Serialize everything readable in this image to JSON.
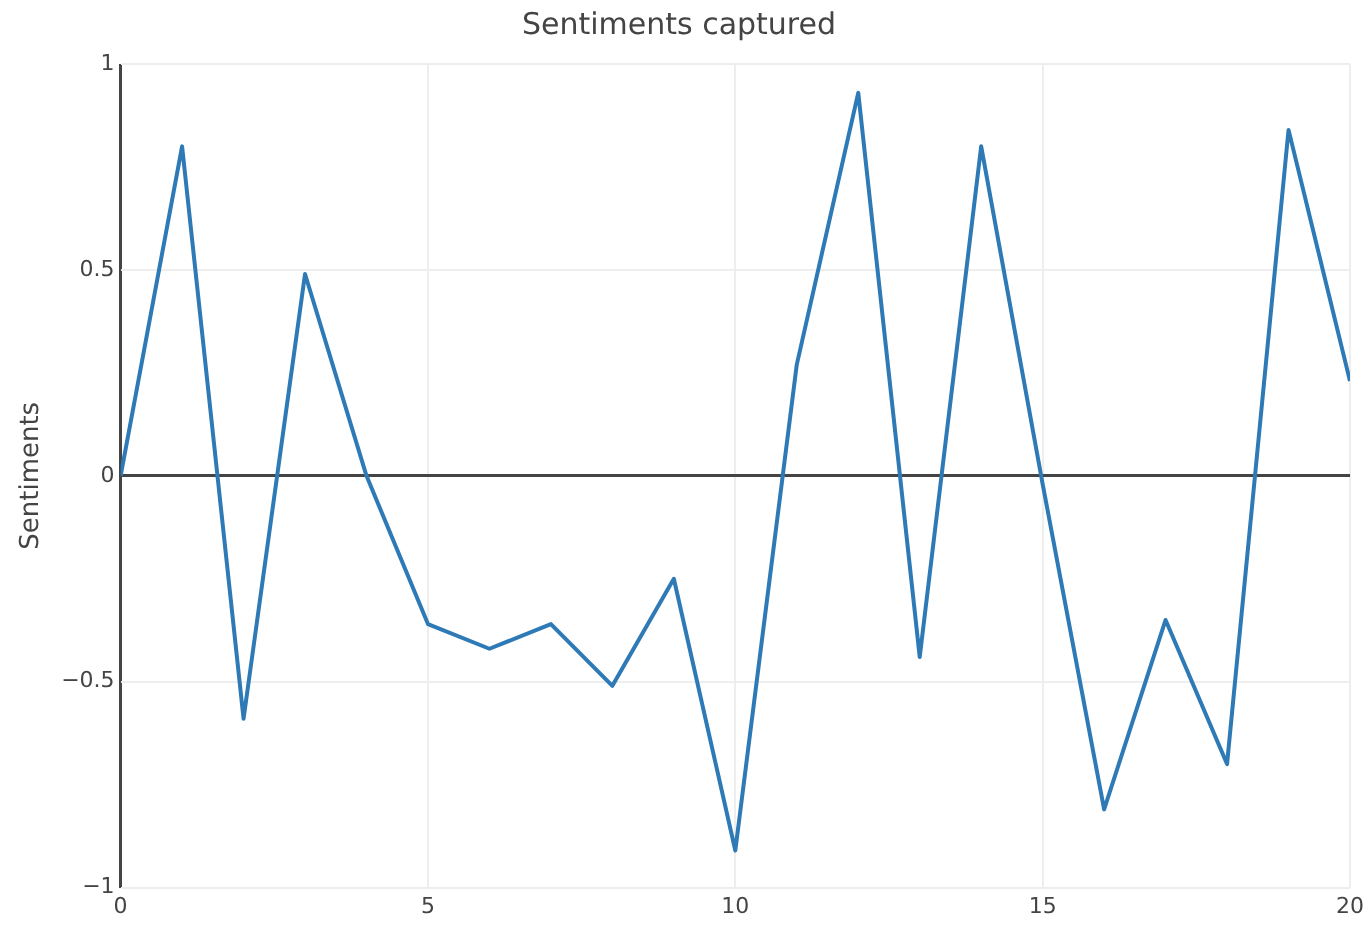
{
  "chart_data": {
    "type": "line",
    "title": "Sentiments captured",
    "ylabel": "Sentiments",
    "x": [
      0,
      1,
      2,
      3,
      4,
      5,
      6,
      7,
      8,
      9,
      10,
      11,
      12,
      13,
      14,
      15,
      16,
      17,
      18,
      19,
      20
    ],
    "series": [
      {
        "color": "#2e7ab6",
        "values": [
          0,
          0.8,
          -0.59,
          0.49,
          0,
          -0.36,
          -0.42,
          -0.36,
          -0.51,
          -0.25,
          -0.91,
          0.27,
          0.93,
          -0.44,
          0.8,
          -0.02,
          -0.81,
          -0.35,
          -0.7,
          0.84,
          0.23
        ]
      }
    ],
    "xlim": [
      0,
      20
    ],
    "xticks": [
      0,
      5,
      10,
      15,
      20
    ],
    "ylim": [
      -1,
      1
    ],
    "yticks": [
      {
        "value": -1,
        "label": "−1"
      },
      {
        "value": -0.5,
        "label": "−0.5"
      },
      0,
      0.5,
      1
    ],
    "grid": true,
    "legend": false,
    "marker": "none",
    "line_style": "solid"
  }
}
